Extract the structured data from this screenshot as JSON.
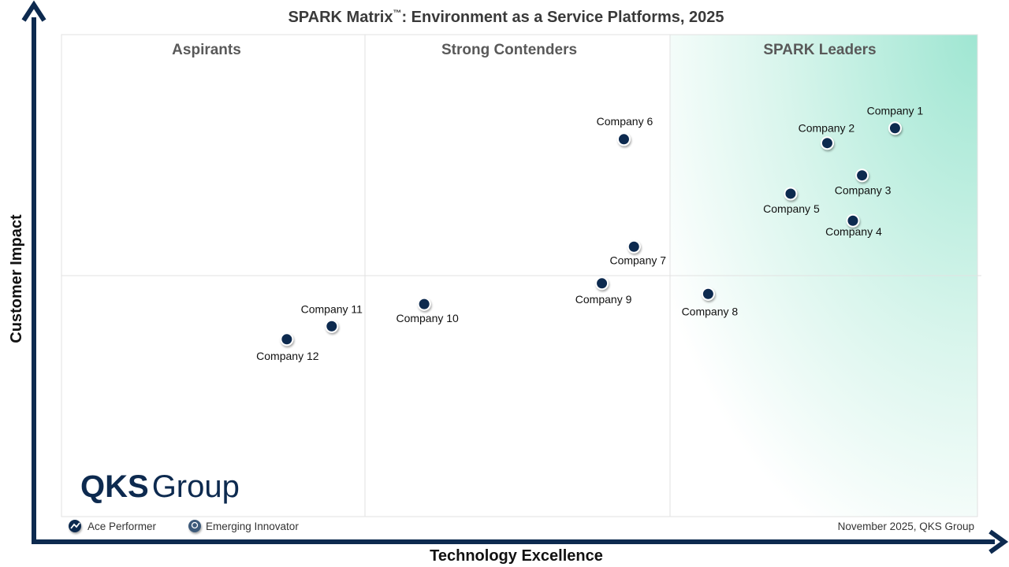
{
  "chart_data": {
    "type": "scatter",
    "title": "SPARK Matrix",
    "title_tm": "™",
    "title_rest": ": Environment as a Service Platforms, 2025",
    "xlabel": "Technology Excellence",
    "ylabel": "Customer Impact",
    "xlim": [
      0,
      100
    ],
    "ylim": [
      0,
      100
    ],
    "quadrants": [
      "Aspirants",
      "Strong Contenders",
      "SPARK Leaders"
    ],
    "points": [
      {
        "name": "Company 1",
        "x": 91.0,
        "y": 80.6
      },
      {
        "name": "Company 2",
        "x": 83.6,
        "y": 77.5
      },
      {
        "name": "Company 3",
        "x": 87.4,
        "y": 70.8
      },
      {
        "name": "Company 4",
        "x": 86.4,
        "y": 61.4
      },
      {
        "name": "Company 5",
        "x": 79.6,
        "y": 67.0
      },
      {
        "name": "Company 6",
        "x": 61.4,
        "y": 78.3
      },
      {
        "name": "Company 7",
        "x": 62.5,
        "y": 56.0
      },
      {
        "name": "Company 8",
        "x": 70.6,
        "y": 46.2
      },
      {
        "name": "Company 9",
        "x": 59.0,
        "y": 48.4
      },
      {
        "name": "Company 10",
        "x": 39.6,
        "y": 44.1
      },
      {
        "name": "Company 11",
        "x": 29.5,
        "y": 39.5
      },
      {
        "name": "Company 12",
        "x": 24.6,
        "y": 36.8
      }
    ],
    "legend": [
      {
        "label": "Ace Performer",
        "icon": "trend-line-icon"
      },
      {
        "label": "Emerging Innovator",
        "icon": "lightbulb-icon"
      }
    ],
    "legend_position": "bottom-left",
    "footnote": "November 2025, QKS Group",
    "logo": {
      "bold": "QKS",
      "rest": "Group"
    },
    "colors": {
      "point": "#0d2a4f",
      "axis": "#0d2a4f",
      "leaders_gradient": "#9fe6d2"
    }
  }
}
